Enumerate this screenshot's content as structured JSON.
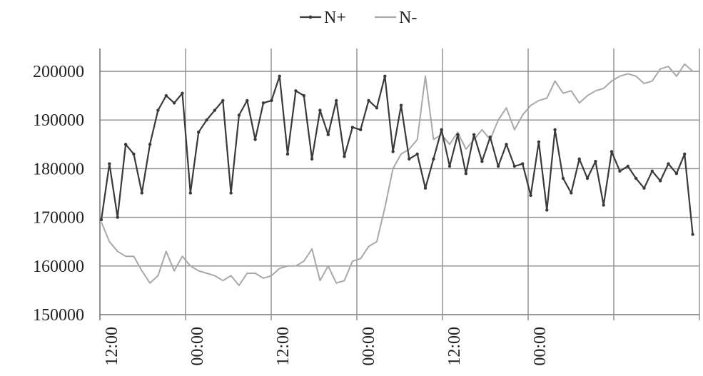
{
  "chart_data": {
    "type": "line",
    "ylim": [
      150000,
      200000
    ],
    "y_ticks": [
      150000,
      160000,
      170000,
      180000,
      190000,
      200000
    ],
    "y_tick_labels": [
      "150000",
      "160000",
      "170000",
      "180000",
      "190000",
      "200000"
    ],
    "x_tick_labels": [
      "12:00",
      "00:00",
      "12:00",
      "00:00",
      "12:00",
      "00:00"
    ],
    "x_ticks_hours": [
      0,
      12,
      24,
      36,
      48,
      60
    ],
    "x_range_hours": [
      0,
      84
    ],
    "grid": true,
    "legend_position": "top-center",
    "x_hours": [
      0,
      1,
      2,
      3,
      4,
      5,
      6,
      7,
      8,
      9,
      10,
      11,
      12,
      13,
      14,
      15,
      16,
      17,
      18,
      19,
      20,
      21,
      22,
      23,
      24,
      25,
      26,
      27,
      28,
      29,
      30,
      31,
      32,
      33,
      34,
      35,
      36,
      37,
      38,
      39,
      40,
      41,
      42,
      43,
      44,
      45,
      46,
      47,
      48,
      49,
      50,
      51,
      52,
      53,
      54,
      55,
      56,
      57,
      58,
      59,
      60,
      61,
      62,
      63,
      64,
      65,
      66,
      67,
      68,
      69,
      70,
      71,
      72,
      73,
      74,
      75,
      76,
      77,
      78,
      79,
      80,
      81,
      82,
      83,
      84
    ],
    "series": [
      {
        "name": "N+",
        "color": "#3a3a3a",
        "marker": true,
        "values": [
          169500,
          181000,
          170000,
          185000,
          183000,
          175000,
          185000,
          192000,
          195000,
          193500,
          195500,
          175000,
          187500,
          190000,
          192000,
          194000,
          175000,
          191000,
          194000,
          186000,
          193500,
          194000,
          199000,
          183000,
          196000,
          195000,
          182000,
          192000,
          187000,
          194000,
          182500,
          188500,
          188000,
          194000,
          192500,
          199000,
          183500,
          193000,
          182000,
          183000,
          176000,
          182000,
          188000,
          180500,
          187000,
          179000,
          187000,
          181500,
          186500,
          180500,
          185000,
          180500,
          181000,
          174500,
          185500,
          171500,
          188000,
          178000,
          175000,
          182000,
          178000,
          181500,
          172500,
          183500,
          179500,
          180500,
          178000,
          176000,
          179500,
          177500,
          181000,
          179000,
          183000,
          166500
        ],
        "x_offset": 0.2,
        "step": 1.135
      },
      {
        "name": "N-",
        "color": "#a8a8a8",
        "marker": false,
        "values": [
          169000,
          165000,
          163000,
          162000,
          162000,
          159000,
          156500,
          158000,
          163000,
          159000,
          162000,
          160000,
          159000,
          158500,
          158000,
          157000,
          158000,
          156000,
          158500,
          158500,
          157500,
          158000,
          159500,
          160000,
          160000,
          161000,
          163500,
          157000,
          160000,
          156500,
          157000,
          161000,
          161500,
          164000,
          165000,
          172000,
          180000,
          183000,
          184000,
          186000,
          199000,
          186000,
          187000,
          185000,
          187500,
          184000,
          186000,
          188000,
          186000,
          190000,
          192500,
          188000,
          191000,
          193000,
          194000,
          194500,
          198000,
          195500,
          196000,
          193500,
          195000,
          196000,
          196500,
          198000,
          199000,
          199500,
          199000,
          197500,
          198000,
          200500,
          201000,
          199000,
          201500,
          200000
        ],
        "x_offset": 0.2,
        "step": 1.135
      }
    ]
  }
}
